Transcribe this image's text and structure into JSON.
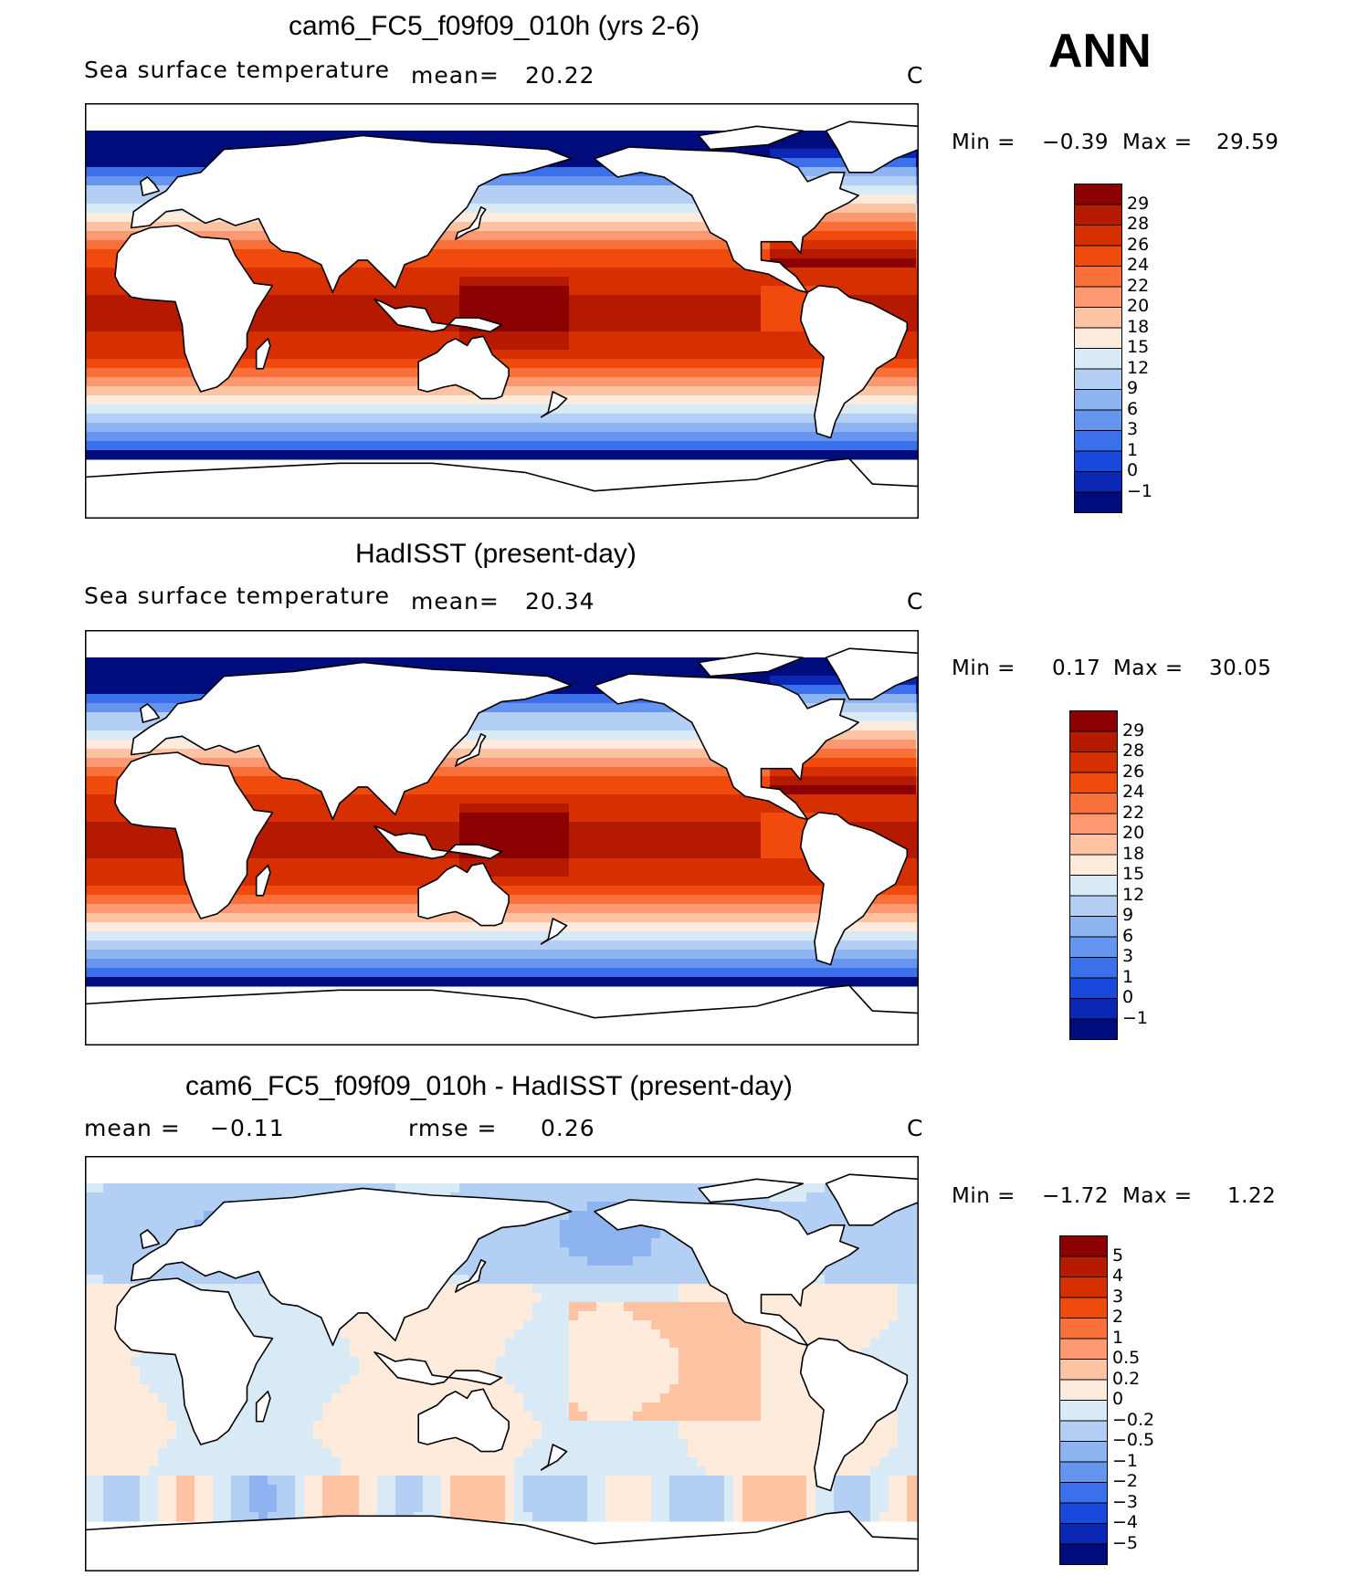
{
  "season": "ANN",
  "chart_data": [
    {
      "type": "heatmap",
      "title": "cam6_FC5_f09f09_010h (yrs 2-6)",
      "variable": "Sea surface temperature",
      "stats": [
        {
          "label": "mean=",
          "value": "20.22"
        }
      ],
      "units": "C",
      "min_label": "Min =",
      "min_value": "−0.39",
      "max_label": "Max =",
      "max_value": "29.59",
      "colorbar_levels": [
        "29",
        "28",
        "26",
        "24",
        "22",
        "20",
        "18",
        "15",
        "12",
        "9",
        "6",
        "3",
        "1",
        "0",
        "−1"
      ],
      "colorbar_colors": [
        "#8b0000",
        "#b51a00",
        "#d62f02",
        "#f04a0c",
        "#f9703b",
        "#fc9872",
        "#fdc3a3",
        "#feebdc",
        "#d9eaf7",
        "#b3cff3",
        "#8db4f0",
        "#6595ee",
        "#3a70ea",
        "#1a48dd",
        "#0a27b5",
        "#000c7c"
      ]
    },
    {
      "type": "heatmap",
      "title": "HadISST (present-day)",
      "variable": "Sea surface temperature",
      "stats": [
        {
          "label": "mean=",
          "value": "20.34"
        }
      ],
      "units": "C",
      "min_label": "Min =",
      "min_value": "0.17",
      "max_label": "Max =",
      "max_value": "30.05",
      "colorbar_levels": [
        "29",
        "28",
        "26",
        "24",
        "22",
        "20",
        "18",
        "15",
        "12",
        "9",
        "6",
        "3",
        "1",
        "0",
        "−1"
      ],
      "colorbar_colors": [
        "#8b0000",
        "#b51a00",
        "#d62f02",
        "#f04a0c",
        "#f9703b",
        "#fc9872",
        "#fdc3a3",
        "#feebdc",
        "#d9eaf7",
        "#b3cff3",
        "#8db4f0",
        "#6595ee",
        "#3a70ea",
        "#1a48dd",
        "#0a27b5",
        "#000c7c"
      ]
    },
    {
      "type": "heatmap",
      "title": "cam6_FC5_f09f09_010h - HadISST (present-day)",
      "variable": "",
      "stats": [
        {
          "label": "mean =",
          "value": "−0.11"
        },
        {
          "label": "rmse =",
          "value": "0.26"
        }
      ],
      "units": "C",
      "min_label": "Min =",
      "min_value": "−1.72",
      "max_label": "Max =",
      "max_value": "1.22",
      "colorbar_levels": [
        "5",
        "4",
        "3",
        "2",
        "1",
        "0.5",
        "0.2",
        "0",
        "−0.2",
        "−0.5",
        "−1",
        "−2",
        "−3",
        "−4",
        "−5"
      ],
      "colorbar_colors": [
        "#8b0000",
        "#b51a00",
        "#d62f02",
        "#f04a0c",
        "#f9703b",
        "#fc9872",
        "#fdc3a3",
        "#feebdc",
        "#d9eaf7",
        "#b3cff3",
        "#8db4f0",
        "#6595ee",
        "#3a70ea",
        "#1a48dd",
        "#0a27b5",
        "#000c7c"
      ]
    }
  ]
}
